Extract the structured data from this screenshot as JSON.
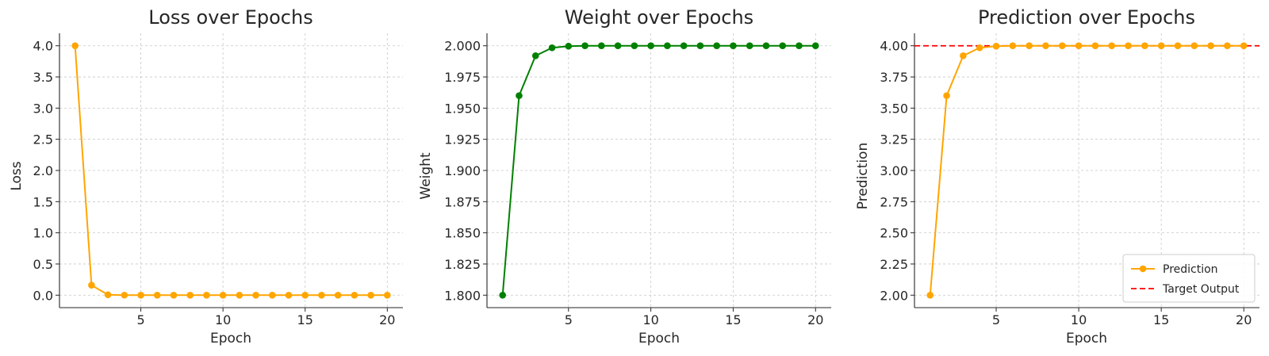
{
  "colors": {
    "loss": "#FFA500",
    "weight": "#008000",
    "prediction": "#FFA500",
    "target": "#FF0000",
    "grid": "#c8c8c8",
    "axis": "#262626"
  },
  "chart_data": [
    {
      "type": "line",
      "title": "Loss over Epochs",
      "xlabel": "Epoch",
      "ylabel": "Loss",
      "xlim": [
        0.05,
        20.95
      ],
      "ylim": [
        -0.2,
        4.2
      ],
      "xticks": [
        5,
        10,
        15,
        20
      ],
      "xtick_labels": [
        "5",
        "10",
        "15",
        "20"
      ],
      "yticks": [
        0,
        0.5,
        1,
        1.5,
        2,
        2.5,
        3,
        3.5,
        4
      ],
      "ytick_labels": [
        "0.0",
        "0.5",
        "1.0",
        "1.5",
        "2.0",
        "2.5",
        "3.0",
        "3.5",
        "4.0"
      ],
      "grid": true,
      "series": [
        {
          "color": "#FFA500",
          "marker": "circle",
          "x": [
            1,
            2,
            3,
            4,
            5,
            6,
            7,
            8,
            9,
            10,
            11,
            12,
            13,
            14,
            15,
            16,
            17,
            18,
            19,
            20
          ],
          "y": [
            4.0,
            0.16,
            0.0064,
            0.0003,
            0,
            0,
            0,
            0,
            0,
            0,
            0,
            0,
            0,
            0,
            0,
            0,
            0,
            0,
            0,
            0
          ]
        }
      ]
    },
    {
      "type": "line",
      "title": "Weight over Epochs",
      "xlabel": "Epoch",
      "ylabel": "Weight",
      "xlim": [
        0.05,
        20.95
      ],
      "ylim": [
        1.79,
        2.01
      ],
      "xticks": [
        5,
        10,
        15,
        20
      ],
      "xtick_labels": [
        "5",
        "10",
        "15",
        "20"
      ],
      "yticks": [
        1.8,
        1.825,
        1.85,
        1.875,
        1.9,
        1.925,
        1.95,
        1.975,
        2.0
      ],
      "ytick_labels": [
        "1.800",
        "1.825",
        "1.850",
        "1.875",
        "1.900",
        "1.925",
        "1.950",
        "1.975",
        "2.000"
      ],
      "grid": true,
      "series": [
        {
          "color": "#008000",
          "marker": "circle",
          "x": [
            1,
            2,
            3,
            4,
            5,
            6,
            7,
            8,
            9,
            10,
            11,
            12,
            13,
            14,
            15,
            16,
            17,
            18,
            19,
            20
          ],
          "y": [
            1.8,
            1.96,
            1.992,
            1.9984,
            1.99968,
            2.0,
            2.0,
            2.0,
            2.0,
            2.0,
            2.0,
            2.0,
            2.0,
            2.0,
            2.0,
            2.0,
            2.0,
            2.0,
            2.0,
            2.0
          ]
        }
      ]
    },
    {
      "type": "line",
      "title": "Prediction over Epochs",
      "xlabel": "Epoch",
      "ylabel": "Prediction",
      "xlim": [
        0.05,
        20.95
      ],
      "ylim": [
        1.9,
        4.1
      ],
      "xticks": [
        5,
        10,
        15,
        20
      ],
      "xtick_labels": [
        "5",
        "10",
        "15",
        "20"
      ],
      "yticks": [
        2,
        2.25,
        2.5,
        2.75,
        3,
        3.25,
        3.5,
        3.75,
        4
      ],
      "ytick_labels": [
        "2.00",
        "2.25",
        "2.50",
        "2.75",
        "3.00",
        "3.25",
        "3.50",
        "3.75",
        "4.00"
      ],
      "grid": true,
      "legend": "bottom-right",
      "series": [
        {
          "name": "Prediction",
          "color": "#FFA500",
          "marker": "circle",
          "x": [
            1,
            2,
            3,
            4,
            5,
            6,
            7,
            8,
            9,
            10,
            11,
            12,
            13,
            14,
            15,
            16,
            17,
            18,
            19,
            20
          ],
          "y": [
            2.0,
            3.6,
            3.92,
            3.984,
            3.9968,
            4.0,
            4.0,
            4.0,
            4.0,
            4.0,
            4.0,
            4.0,
            4.0,
            4.0,
            4.0,
            4.0,
            4.0,
            4.0,
            4.0,
            4.0
          ]
        }
      ],
      "hlines": [
        {
          "name": "Target Output",
          "y": 4.0,
          "color": "#FF0000",
          "style": "dashed"
        }
      ]
    }
  ]
}
